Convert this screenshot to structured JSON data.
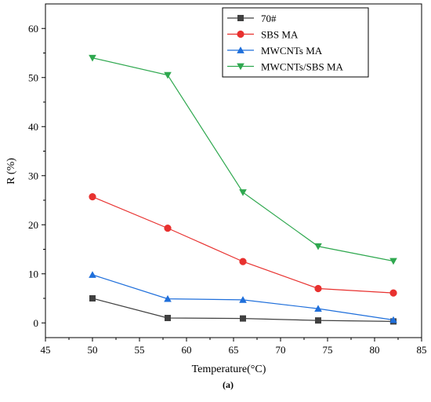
{
  "chart_data": {
    "type": "line",
    "xlabel": "Temperature(°C)",
    "ylabel": "R (%)",
    "panel_label": "(a)",
    "xlim": [
      45,
      85
    ],
    "ylim": [
      -3,
      65
    ],
    "xticks": [
      45,
      50,
      55,
      60,
      65,
      70,
      75,
      80,
      85
    ],
    "yticks": [
      0,
      10,
      20,
      30,
      40,
      50,
      60
    ],
    "grid": false,
    "legend_position": "top-right",
    "x": [
      50,
      58,
      66,
      74,
      82
    ],
    "series": [
      {
        "name": "70#",
        "values": [
          5.0,
          1.0,
          0.9,
          0.5,
          0.3
        ],
        "color": "#404040",
        "marker": "square"
      },
      {
        "name": "SBS MA",
        "values": [
          25.7,
          19.3,
          12.5,
          7.0,
          6.1
        ],
        "color": "#e8312f",
        "marker": "circle"
      },
      {
        "name": "MWCNTs MA",
        "values": [
          9.8,
          4.9,
          4.7,
          2.9,
          0.6
        ],
        "color": "#1f6fdb",
        "marker": "triangle-up"
      },
      {
        "name": "MWCNTs/SBS MA",
        "values": [
          54.0,
          50.5,
          26.6,
          15.6,
          12.6
        ],
        "color": "#2fa84f",
        "marker": "triangle-down"
      }
    ]
  }
}
